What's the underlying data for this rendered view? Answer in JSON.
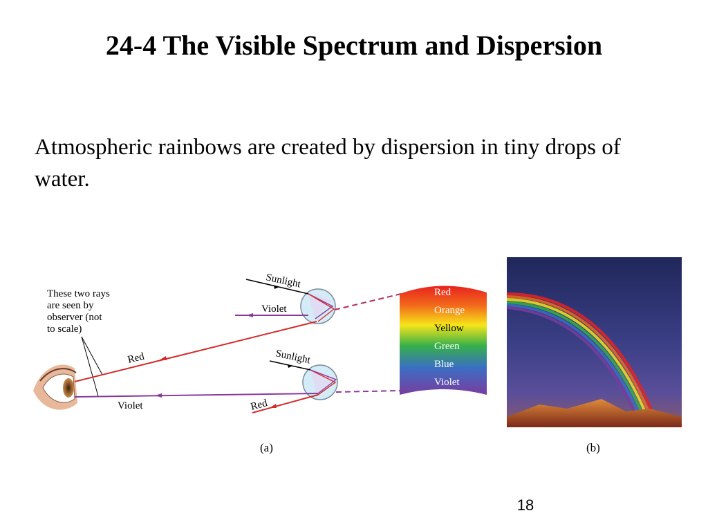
{
  "slide": {
    "title": "24-4 The Visible Spectrum and Dispersion",
    "body": "Atmospheric rainbows are created by dispersion in tiny drops of water.",
    "page_number": "18"
  },
  "figure": {
    "annotation": [
      "These two rays",
      "are seen by",
      "observer (not",
      "to scale)"
    ],
    "top_drop": {
      "sunlight_label": "Sunlight",
      "violet_label": "Violet"
    },
    "bottom_drop": {
      "sunlight_label": "Sunlight",
      "red_label": "Red"
    },
    "ray_labels": {
      "red": "Red",
      "violet": "Violet"
    },
    "spectrum_labels": [
      "Red",
      "Orange",
      "Yellow",
      "Green",
      "Blue",
      "Violet"
    ],
    "caption_a": "(a)",
    "caption_b": "(b)"
  },
  "colors": {
    "red_ray": "#d42a2a",
    "violet_ray": "#8a3a9a",
    "drop_fill": "#d4ecf7",
    "sky": "#2a2f6a"
  }
}
